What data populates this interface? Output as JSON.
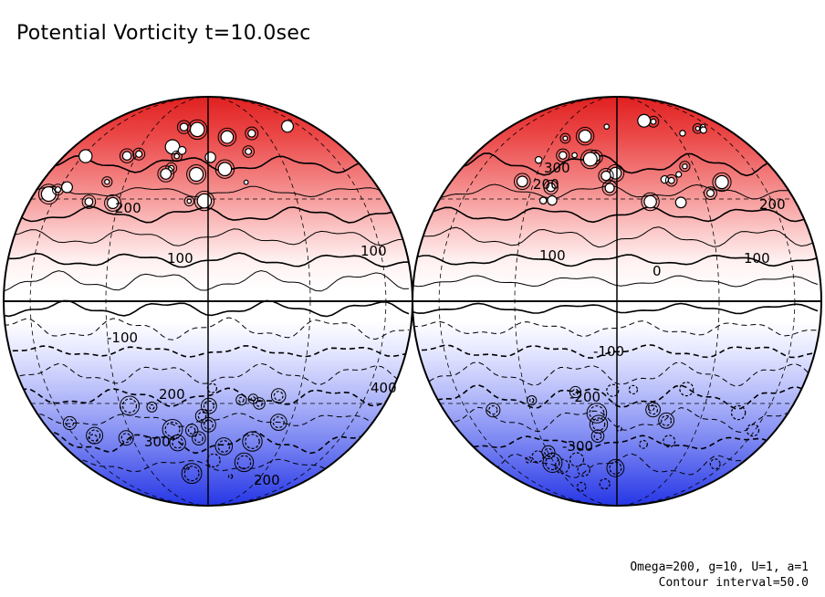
{
  "title": "Potential Vorticity t=10.0sec",
  "footer": {
    "params": "Omega=200, g=10, U=1, a=1",
    "contour": "Contour interval=50.0"
  },
  "chart_data": {
    "type": "heatmap",
    "title": "Potential Vorticity t=10.0sec",
    "projection": "orthographic, two hemispheres (left and right views)",
    "colormap": {
      "positive": "#e01a1a",
      "zero": "#ffffff",
      "negative": "#1a2ae0"
    },
    "contour_interval": 50.0,
    "negative_contours": "dashed",
    "parameters": {
      "Omega": 200,
      "g": 10,
      "U": 1,
      "a": 1
    },
    "panels": [
      {
        "name": "left",
        "contour_labels": [
          "200",
          "100",
          "100",
          "-100",
          "200",
          "300",
          "400",
          "200"
        ]
      },
      {
        "name": "right",
        "contour_labels": [
          "300",
          "200",
          "200",
          "100",
          "100",
          "0",
          "-100",
          "-200",
          "-300"
        ]
      }
    ]
  }
}
